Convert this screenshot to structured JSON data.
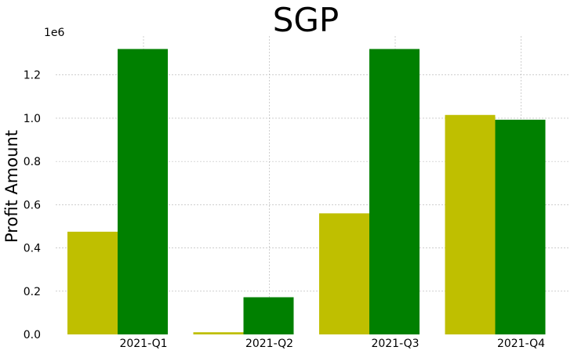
{
  "chart_data": {
    "type": "bar",
    "title": "SGP",
    "xlabel": "",
    "ylabel": "Profit Amount",
    "scale_offset_label": "1e6",
    "categories": [
      "2021-Q1",
      "2021-Q2",
      "2021-Q3",
      "2021-Q4"
    ],
    "series": [
      {
        "color": "#bfbf00",
        "values": [
          0.475,
          0.01,
          0.56,
          1.015
        ]
      },
      {
        "color": "#008000",
        "values": [
          1.32,
          0.172,
          1.32,
          0.993
        ]
      }
    ],
    "yticks": [
      "0.0",
      "0.2",
      "0.4",
      "0.6",
      "0.8",
      "1.0",
      "1.2"
    ],
    "ytick_values": [
      0.0,
      0.2,
      0.4,
      0.6,
      0.8,
      1.0,
      1.2
    ],
    "ylim": [
      0,
      1.38
    ],
    "grid": true,
    "legend": "none"
  }
}
